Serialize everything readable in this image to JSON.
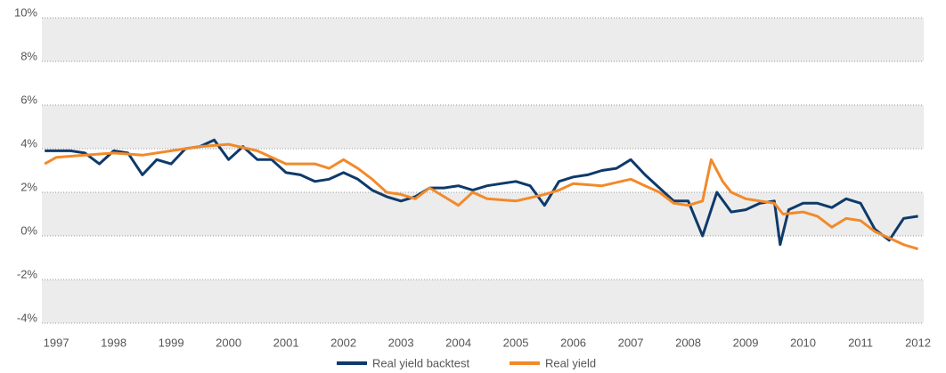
{
  "chart_data": {
    "type": "line",
    "xlim": [
      1996.75,
      2012.1
    ],
    "xticks": [
      1997,
      1998,
      1999,
      2000,
      2001,
      2002,
      2003,
      2004,
      2005,
      2006,
      2007,
      2008,
      2009,
      2010,
      2011,
      2012
    ],
    "ylim": [
      -4,
      10
    ],
    "yticks": [
      {
        "value": -4,
        "label": "-4%"
      },
      {
        "value": -2,
        "label": "-2%"
      },
      {
        "value": 0,
        "label": "0%"
      },
      {
        "value": 2,
        "label": "2%"
      },
      {
        "value": 4,
        "label": "4%"
      },
      {
        "value": 6,
        "label": "6%"
      },
      {
        "value": 8,
        "label": "8%"
      },
      {
        "value": 10,
        "label": "10%"
      }
    ],
    "grid": true,
    "legend": "bottom",
    "series": [
      {
        "name": "Real yield backtest",
        "color": "#0e3a6b",
        "x": [
          1996.8,
          1997.0,
          1997.25,
          1997.5,
          1997.75,
          1998.0,
          1998.25,
          1998.5,
          1998.75,
          1999.0,
          1999.25,
          1999.5,
          1999.75,
          2000.0,
          2000.25,
          2000.5,
          2000.75,
          2001.0,
          2001.25,
          2001.5,
          2001.75,
          2002.0,
          2002.25,
          2002.5,
          2002.75,
          2003.0,
          2003.25,
          2003.5,
          2003.75,
          2004.0,
          2004.25,
          2004.5,
          2004.75,
          2005.0,
          2005.25,
          2005.5,
          2005.75,
          2006.0,
          2006.25,
          2006.5,
          2006.75,
          2007.0,
          2007.25,
          2007.5,
          2007.75,
          2008.0,
          2008.25,
          2008.5,
          2008.75,
          2009.0,
          2009.25,
          2009.5,
          2009.6,
          2009.75,
          2010.0,
          2010.25,
          2010.5,
          2010.75,
          2011.0,
          2011.25,
          2011.5,
          2011.75,
          2012.0
        ],
        "values": [
          3.9,
          3.9,
          3.9,
          3.8,
          3.3,
          3.9,
          3.8,
          2.8,
          3.5,
          3.3,
          4.0,
          4.1,
          4.4,
          3.5,
          4.1,
          3.5,
          3.5,
          2.9,
          2.8,
          2.5,
          2.6,
          2.9,
          2.6,
          2.1,
          1.8,
          1.6,
          1.8,
          2.2,
          2.2,
          2.3,
          2.1,
          2.3,
          2.4,
          2.5,
          2.3,
          1.4,
          2.5,
          2.7,
          2.8,
          3.0,
          3.1,
          3.5,
          2.8,
          2.2,
          1.6,
          1.6,
          0.0,
          2.0,
          1.1,
          1.2,
          1.5,
          1.6,
          -0.4,
          1.2,
          1.5,
          1.5,
          1.3,
          1.7,
          1.5,
          0.3,
          -0.2,
          0.8,
          0.9
        ]
      },
      {
        "name": "Real yield",
        "color": "#f28a2a",
        "x": [
          1996.8,
          1997.0,
          1997.5,
          1998.0,
          1998.5,
          1999.0,
          1999.5,
          2000.0,
          2000.5,
          2001.0,
          2001.5,
          2001.75,
          2002.0,
          2002.25,
          2002.5,
          2002.75,
          2003.0,
          2003.25,
          2003.5,
          2003.75,
          2004.0,
          2004.25,
          2004.5,
          2005.0,
          2005.5,
          2005.75,
          2006.0,
          2006.5,
          2007.0,
          2007.25,
          2007.5,
          2007.75,
          2008.0,
          2008.25,
          2008.4,
          2008.6,
          2008.75,
          2009.0,
          2009.25,
          2009.5,
          2009.65,
          2010.0,
          2010.25,
          2010.5,
          2010.75,
          2011.0,
          2011.25,
          2011.5,
          2011.75,
          2012.0
        ],
        "values": [
          3.3,
          3.6,
          3.7,
          3.8,
          3.7,
          3.9,
          4.1,
          4.2,
          3.9,
          3.3,
          3.3,
          3.1,
          3.5,
          3.1,
          2.6,
          2.0,
          1.9,
          1.7,
          2.2,
          1.8,
          1.4,
          2.0,
          1.7,
          1.6,
          1.9,
          2.1,
          2.4,
          2.3,
          2.6,
          2.3,
          2.0,
          1.5,
          1.4,
          1.6,
          3.5,
          2.5,
          2.0,
          1.7,
          1.6,
          1.5,
          1.0,
          1.1,
          0.9,
          0.4,
          0.8,
          0.7,
          0.2,
          -0.1,
          -0.4,
          -0.6
        ]
      }
    ]
  }
}
